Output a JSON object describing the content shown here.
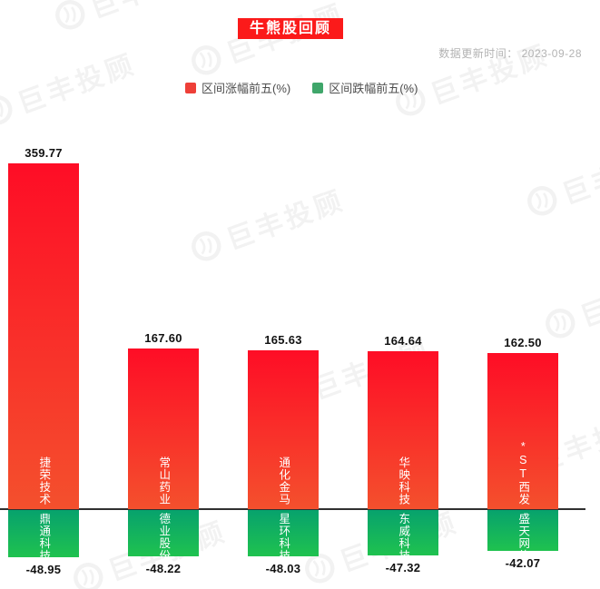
{
  "header": {
    "title": "牛熊股回顾",
    "update_label": "数据更新时间：",
    "update_date": "2023-09-28"
  },
  "legend": {
    "gain_label": "区间涨幅前五(%)",
    "loss_label": "区间跌幅前五(%)"
  },
  "watermark_text": "巨丰投顾",
  "colors": {
    "banner_bg": "#fb1a1a",
    "legend_gain": "#ee3f38",
    "legend_loss": "#3fa66a",
    "bar_gain_top": "#fe0d26",
    "bar_gain_bottom": "#f4502d",
    "bar_loss_top": "#07a26d",
    "bar_loss_bottom": "#1fc24f",
    "axis_line": "#303030",
    "value_label": "#111111"
  },
  "chart_data": {
    "type": "bar",
    "title": "牛熊股回顾",
    "subtitle": "数据更新时间：2023-09-28",
    "legend": [
      "区间涨幅前五(%)",
      "区间跌幅前五(%)"
    ],
    "legend_position": "top",
    "grid": false,
    "y_axis_visible": false,
    "zero_line": true,
    "categories_note": "each x position pairs one gainer (red, above zero) with one loser (green, below zero)",
    "series": [
      {
        "name": "区间涨幅前五(%)",
        "direction": "up",
        "points": [
          {
            "stock": "捷荣技术",
            "value": 359.77,
            "display": "359.77"
          },
          {
            "stock": "常山药业",
            "value": 167.6,
            "display": "167.60"
          },
          {
            "stock": "通化金马",
            "value": 165.63,
            "display": "165.63"
          },
          {
            "stock": "华映科技",
            "value": 164.64,
            "display": "164.64"
          },
          {
            "stock": "*ST西发",
            "value": 162.5,
            "display": "162.50"
          }
        ]
      },
      {
        "name": "区间跌幅前五(%)",
        "direction": "down",
        "points": [
          {
            "stock": "鼎通科技",
            "value": -48.95,
            "display": "-48.95"
          },
          {
            "stock": "德业股份",
            "value": -48.22,
            "display": "-48.22"
          },
          {
            "stock": "星环科技",
            "value": -48.03,
            "display": "-48.03"
          },
          {
            "stock": "东威科技",
            "value": -47.32,
            "display": "-47.32"
          },
          {
            "stock": "盛天网络",
            "value": -42.07,
            "display": "-42.07"
          }
        ]
      }
    ]
  }
}
